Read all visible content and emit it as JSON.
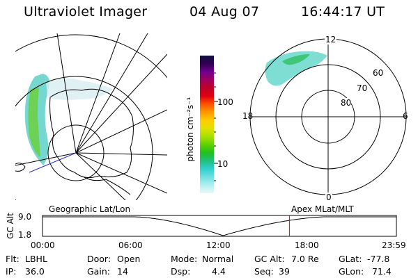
{
  "header": {
    "instrument": "Ultraviolet Imager",
    "date": "04 Aug 07",
    "time": "16:44:17 UT"
  },
  "colorbar": {
    "unit_label": "photon cm⁻²s⁻¹",
    "ticks": [
      "100",
      "10"
    ],
    "colors": [
      "#101040",
      "#300050",
      "#700090",
      "#a00060",
      "#c0002a",
      "#e00010",
      "#ff5500",
      "#ff9900",
      "#ffcc00",
      "#e0e000",
      "#a8e000",
      "#60d000",
      "#20c020",
      "#20c080",
      "#30d0d0",
      "#70e0e0",
      "#b0f0f0",
      "#e8f8f8"
    ]
  },
  "polar_plot": {
    "mlt_labels": {
      "top": "12",
      "left": "18",
      "right": "6",
      "bottom": "0"
    },
    "lat_labels": [
      "60",
      "70",
      "80"
    ]
  },
  "altitude_plot": {
    "left_title": "Geographic Lat/Lon",
    "right_title": "Apex MLat/MLT",
    "ylabel": "GC Alt",
    "ymax": "9.0",
    "ymin": "1.8",
    "time_ticks": [
      "00:00",
      "06:00",
      "12:00",
      "18:00",
      "23:59"
    ],
    "marker_time": "16:44"
  },
  "status": {
    "flt_label": "Flt:",
    "flt_value": "LBHL",
    "ip_label": "IP:",
    "ip_value": "36.0",
    "door_label": "Door:",
    "door_value": "Open",
    "gain_label": "Gain:",
    "gain_value": "14",
    "mode_label": "Mode:",
    "mode_value": "Normal",
    "dsp_label": "Dsp:",
    "dsp_value": "4.4",
    "gcalt_label": "GC Alt:",
    "gcalt_value": "7.0 Re",
    "seq_label": "Seq:",
    "seq_value": "39",
    "glat_label": "GLat:",
    "glat_value": "-77.8",
    "glon_label": "GLon:",
    "glon_value": "71.4"
  }
}
